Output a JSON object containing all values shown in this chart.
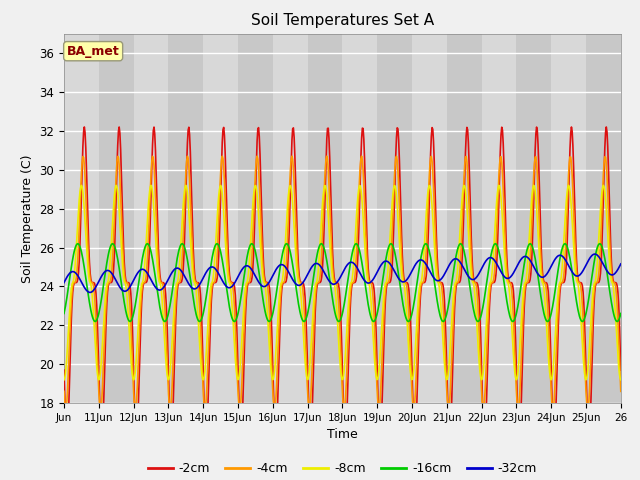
{
  "title": "Soil Temperatures Set A",
  "xlabel": "Time",
  "ylabel": "Soil Temperature (C)",
  "ylim": [
    18,
    37
  ],
  "yticks": [
    18,
    20,
    22,
    24,
    26,
    28,
    30,
    32,
    34,
    36
  ],
  "label_box": "BA_met",
  "series_labels": [
    "-2cm",
    "-4cm",
    "-8cm",
    "-16cm",
    "-32cm"
  ],
  "series_colors": [
    "#dd1111",
    "#ff9900",
    "#eeee00",
    "#00cc00",
    "#0000cc"
  ],
  "n_days": 16,
  "start_day": 10,
  "base_temp": 24.2,
  "amplitudes": [
    8.0,
    6.5,
    5.0,
    2.0,
    0.55
  ],
  "phase_delays_hours": [
    0.0,
    0.8,
    2.0,
    4.5,
    8.0
  ],
  "sharpness": [
    4.0,
    3.0,
    2.0,
    1.0,
    1.0
  ],
  "peak_hour": 14.0,
  "base_trend": [
    0.0,
    0.0,
    0.0,
    0.0,
    0.06
  ]
}
